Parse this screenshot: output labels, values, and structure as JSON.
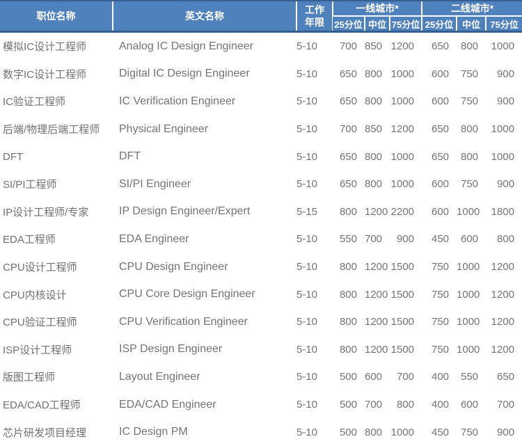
{
  "colors": {
    "header_background": "#4f81bd",
    "header_dark_border": "#365f91",
    "header_text": "#ffffff",
    "body_text": "#747474",
    "page_background": "#ffffff"
  },
  "chart_data": {
    "type": "table",
    "columns": {
      "position": "职位名称",
      "english": "英文名称",
      "experience": [
        "工作",
        "年限"
      ],
      "tier1": {
        "label": "一线城市*",
        "subs": [
          "25分位",
          "中位",
          "75分位"
        ]
      },
      "tier2": {
        "label": "二线城市*",
        "subs": [
          "25分位",
          "中位",
          "75分位"
        ]
      }
    },
    "rows": [
      [
        "模拟IC设计工程师",
        "Analog IC Design Engineer",
        "5-10",
        "700",
        "850",
        "1200",
        "650",
        "800",
        "1000"
      ],
      [
        "数字IC设计工程师",
        "Digital IC Design Engineer",
        "5-10",
        "650",
        "800",
        "1000",
        "600",
        "750",
        "900"
      ],
      [
        "IC验证工程师",
        "IC Verification Engineer",
        "5-10",
        "650",
        "800",
        "1000",
        "600",
        "750",
        "900"
      ],
      [
        "后端/物理后端工程师",
        "Physical Engineer",
        "5-10",
        "700",
        "850",
        "1200",
        "650",
        "800",
        "1000"
      ],
      [
        "DFT",
        "DFT",
        "5-10",
        "650",
        "800",
        "1000",
        "650",
        "800",
        "1000"
      ],
      [
        "SI/PI工程师",
        "SI/PI Engineer",
        "5-10",
        "650",
        "800",
        "1000",
        "600",
        "750",
        "900"
      ],
      [
        "IP设计工程师/专家",
        "IP Design Engineer/Expert",
        "5-15",
        "800",
        "1200",
        "2200",
        "600",
        "1000",
        "1800"
      ],
      [
        "EDA工程师",
        "EDA  Engineer",
        "5-10",
        "550",
        "700",
        "900",
        "450",
        "600",
        "800"
      ],
      [
        "CPU设计工程师",
        "CPU Design Engineer",
        "5-10",
        "800",
        "1200",
        "1500",
        "750",
        "1000",
        "1200"
      ],
      [
        "CPU内核设计",
        "CPU Core Design Engineer",
        "5-10",
        "800",
        "1200",
        "1500",
        "750",
        "1000",
        "1200"
      ],
      [
        "CPU验证工程师",
        "CPU Verification Engineer",
        "5-10",
        "800",
        "1200",
        "1500",
        "750",
        "1000",
        "1200"
      ],
      [
        "ISP设计工程师",
        "ISP Design Engineer",
        "5-10",
        "800",
        "1200",
        "1500",
        "750",
        "1000",
        "1200"
      ],
      [
        "版图工程师",
        "Layout Engineer",
        "5-10",
        "500",
        "600",
        "700",
        "400",
        "550",
        "650"
      ],
      [
        "EDA/CAD工程师",
        "EDA/CAD Engineer",
        "5-10",
        "500",
        "700",
        "800",
        "400",
        "600",
        "700"
      ],
      [
        "芯片研发项目经理",
        "IC Design PM",
        "5-10",
        "500",
        "800",
        "1000",
        "450",
        "750",
        "900"
      ]
    ]
  }
}
